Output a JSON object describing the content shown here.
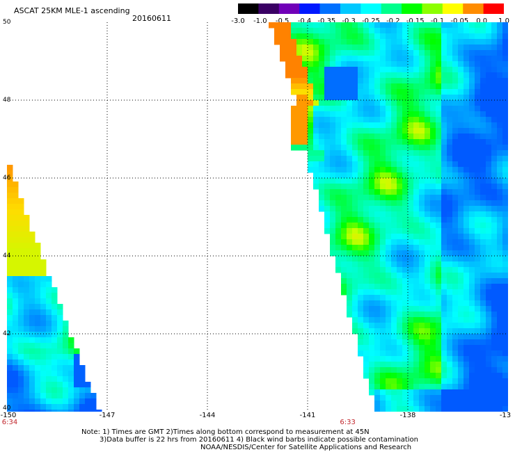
{
  "header": {
    "title": "ASCAT 25KM MLE-1 ascending",
    "date": "20160611"
  },
  "colorbar": {
    "labels": [
      "-3.0",
      "-1.0",
      "-0.5",
      "-0.4",
      "-0.35",
      "-0.3",
      "-0.25",
      "-0.2",
      "-0.15",
      "-0.1",
      "-0.05",
      "0.0",
      "1.0"
    ],
    "colors": [
      "#000000",
      "#3a0064",
      "#7000b8",
      "#0018ff",
      "#0070ff",
      "#00c8ff",
      "#00ffff",
      "#00ff8c",
      "#00ff00",
      "#8cff00",
      "#ffff00",
      "#ff8c00",
      "#ff0000"
    ]
  },
  "axes": {
    "lat_labels": [
      "50",
      "48",
      "46",
      "44",
      "42",
      "40"
    ],
    "lon_labels": [
      "-150",
      "-147",
      "-144",
      "-141",
      "-138",
      "-13"
    ]
  },
  "times": [
    {
      "label": "6:34",
      "lon": -150
    },
    {
      "label": "6:33",
      "lon": -139.8
    }
  ],
  "notes": {
    "line1": "Note: 1) Times are GMT 2)Times along bottom correspond to measurement at 45N",
    "line2": "3)Data buffer is 22 hrs from 20160611 4) Black wind barbs indicate possible contamination",
    "line3": "NOAA/NESDIS/Center for Satellite Applications and Research"
  }
}
